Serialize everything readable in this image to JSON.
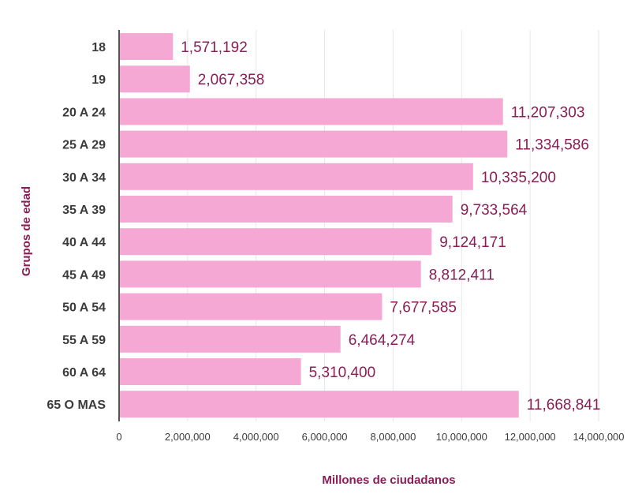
{
  "chart_data": {
    "type": "bar",
    "orientation": "horizontal",
    "xlabel": "Millones de ciudadanos",
    "ylabel": "Grupos de edad",
    "categories": [
      "18",
      "19",
      "20 A 24",
      "25 A 29",
      "30 A 34",
      "35 A 39",
      "40 A 44",
      "45 A 49",
      "50 A 54",
      "55 A 59",
      "60 A 64",
      "65 O MAS"
    ],
    "values": [
      1571192,
      2067358,
      11207303,
      11334586,
      10335200,
      9733564,
      9124171,
      8812411,
      7677585,
      6464274,
      5310400,
      11668841
    ],
    "value_labels": [
      "1,571,192",
      "2,067,358",
      "11,207,303",
      "11,334,586",
      "10,335,200",
      "9,733,564",
      "9,124,171",
      "8,812,411",
      "7,677,585",
      "6,464,274",
      "5,310,400",
      "11,668,841"
    ],
    "xlim": [
      0,
      14000000
    ],
    "xticks": [
      0,
      2000000,
      4000000,
      6000000,
      8000000,
      10000000,
      12000000,
      14000000
    ],
    "xtick_labels": [
      "0",
      "2,000,000",
      "4,000,000",
      "6,000,000",
      "8,000,000",
      "10,000,000",
      "12,000,000",
      "14,000,000"
    ],
    "grid": "vertical",
    "legend": "none",
    "colors": {
      "bar": "#f5a8d4",
      "value_label": "#8a1e55",
      "axis_title": "#8a1e55",
      "grid": "#e6e6e6",
      "axis": "#555555"
    }
  }
}
